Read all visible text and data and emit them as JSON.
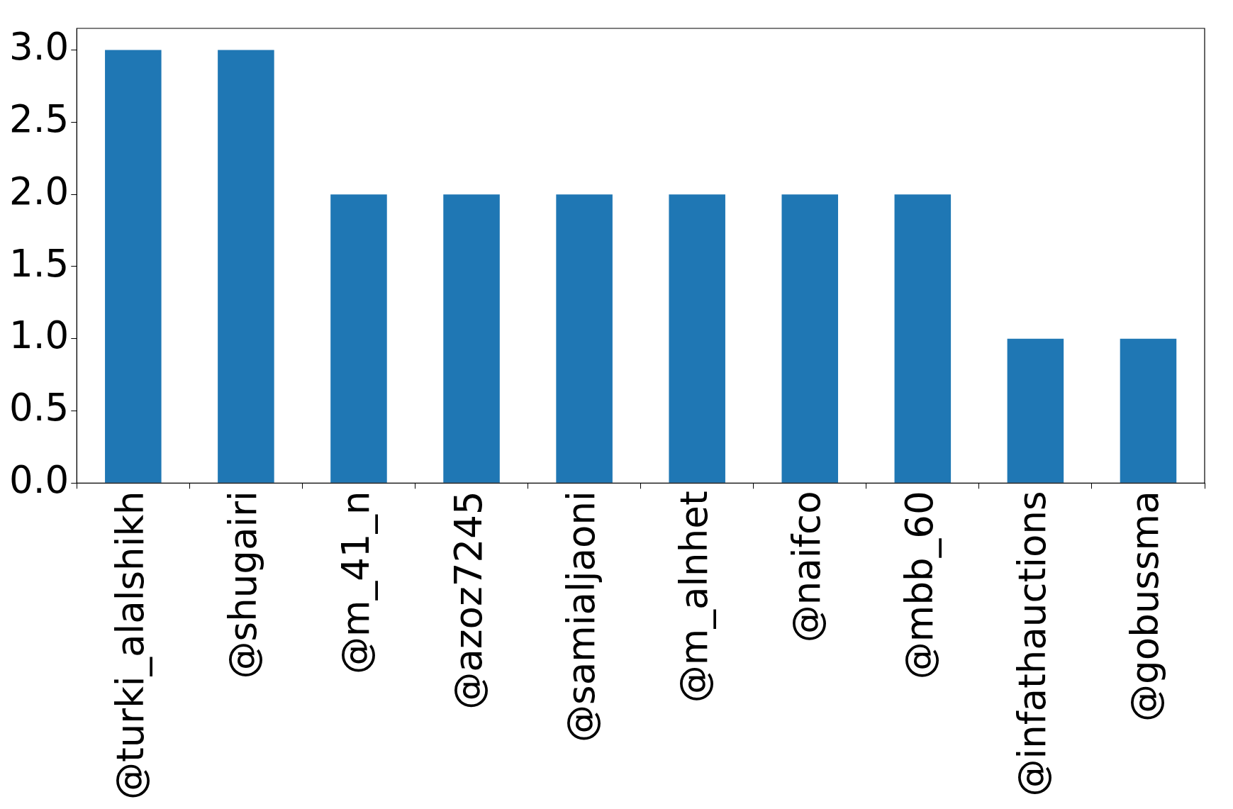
{
  "chart_data": {
    "type": "bar",
    "categories": [
      "@turki_alalshikh",
      "@shugairi",
      "@m_41_n",
      "@azoz7245",
      "@samialjaoni",
      "@m_alnhet",
      "@naifco",
      "@mbb_60",
      "@infathauctions",
      "@gobussma"
    ],
    "values": [
      3,
      3,
      2,
      2,
      2,
      2,
      2,
      2,
      1,
      1
    ],
    "color": "#1f77b4",
    "ylim": [
      0,
      3.15
    ],
    "yticks": [
      {
        "value": 0,
        "label": "0.0"
      },
      {
        "value": 0.5,
        "label": "0.5"
      },
      {
        "value": 1,
        "label": "1.0"
      },
      {
        "value": 1.5,
        "label": "1.5"
      },
      {
        "value": 2,
        "label": "2.0"
      },
      {
        "value": 2.5,
        "label": "2.5"
      },
      {
        "value": 3,
        "label": "3.0"
      }
    ],
    "grid": false,
    "legend": false
  }
}
